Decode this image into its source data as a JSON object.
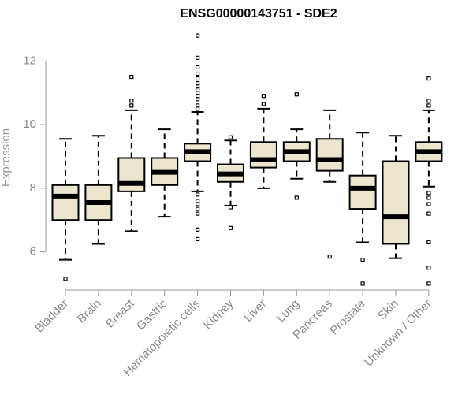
{
  "chart_data": {
    "type": "box",
    "title": "ENSG00000143751 - SDE2",
    "xlabel": "",
    "ylabel": "Expression",
    "ylim": [
      4.8,
      13.0
    ],
    "yticks": [
      6,
      8,
      10,
      12
    ],
    "box_fill": "#ede6cf",
    "categories": [
      "Bladder",
      "Brain",
      "Breast",
      "Gastric",
      "Hematopoietic cells",
      "Kidney",
      "Liver",
      "Lung",
      "Pancreas",
      "Prostate",
      "Skin",
      "Unknown / Other"
    ],
    "boxes": [
      {
        "min": 5.75,
        "q1": 7.0,
        "median": 7.75,
        "q3": 8.1,
        "max": 9.55,
        "outliers": [
          5.15
        ]
      },
      {
        "min": 6.25,
        "q1": 7.0,
        "median": 7.55,
        "q3": 8.1,
        "max": 9.65,
        "outliers": []
      },
      {
        "min": 6.65,
        "q1": 7.9,
        "median": 8.15,
        "q3": 8.95,
        "max": 10.45,
        "outliers": [
          10.6,
          10.75,
          11.5
        ]
      },
      {
        "min": 7.1,
        "q1": 8.1,
        "median": 8.5,
        "q3": 8.95,
        "max": 9.85,
        "outliers": []
      },
      {
        "min": 7.9,
        "q1": 8.85,
        "median": 9.15,
        "q3": 9.4,
        "max": 10.4,
        "outliers": [
          6.4,
          6.7,
          7.2,
          7.35,
          7.5,
          7.6,
          7.8,
          10.5,
          10.6,
          10.8,
          10.9,
          11.0,
          11.1,
          11.2,
          11.3,
          11.45,
          11.6,
          11.8,
          12.1,
          12.8
        ]
      },
      {
        "min": 7.45,
        "q1": 8.2,
        "median": 8.45,
        "q3": 8.75,
        "max": 9.5,
        "outliers": [
          9.6,
          7.4,
          6.75
        ]
      },
      {
        "min": 8.0,
        "q1": 8.65,
        "median": 8.9,
        "q3": 9.45,
        "max": 10.5,
        "outliers": [
          10.65,
          10.9
        ]
      },
      {
        "min": 8.3,
        "q1": 8.85,
        "median": 9.15,
        "q3": 9.45,
        "max": 9.85,
        "outliers": [
          7.7,
          10.95
        ]
      },
      {
        "min": 8.2,
        "q1": 8.55,
        "median": 8.9,
        "q3": 9.55,
        "max": 10.45,
        "outliers": [
          5.85
        ]
      },
      {
        "min": 6.3,
        "q1": 7.35,
        "median": 8.0,
        "q3": 8.4,
        "max": 9.75,
        "outliers": [
          5.75,
          5.0
        ]
      },
      {
        "min": 5.8,
        "q1": 6.25,
        "median": 7.1,
        "q3": 8.85,
        "max": 9.65,
        "outliers": []
      },
      {
        "min": 8.05,
        "q1": 8.85,
        "median": 9.15,
        "q3": 9.45,
        "max": 10.45,
        "outliers": [
          5.0,
          5.5,
          6.3,
          7.2,
          7.5,
          7.7,
          7.85,
          10.6,
          10.75,
          11.45
        ]
      }
    ]
  }
}
